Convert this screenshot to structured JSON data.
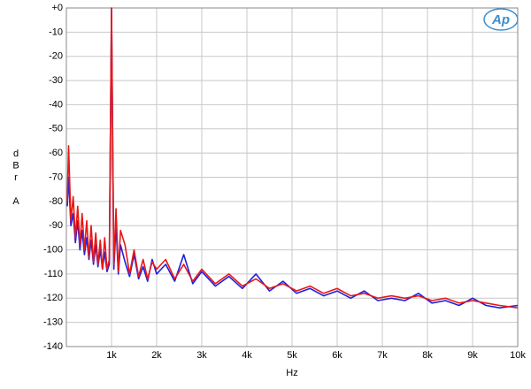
{
  "chart_data": {
    "type": "line",
    "logo": "Ap",
    "xlabel": "Hz",
    "ylabel": "dBr A",
    "x": [
      20,
      50,
      100,
      150,
      200,
      250,
      300,
      350,
      400,
      450,
      500,
      550,
      600,
      650,
      700,
      750,
      800,
      850,
      900,
      950,
      1000,
      1050,
      1100,
      1150,
      1200,
      1300,
      1400,
      1500,
      1600,
      1700,
      1800,
      1900,
      2000,
      2200,
      2400,
      2600,
      2800,
      3000,
      3300,
      3600,
      3900,
      4200,
      4500,
      4800,
      5100,
      5400,
      5700,
      6000,
      6300,
      6600,
      6900,
      7200,
      7500,
      7800,
      8100,
      8400,
      8700,
      9000,
      9300,
      9600,
      10000
    ],
    "series": [
      {
        "color": "#1f1fe0",
        "values": [
          -82,
          -70,
          -90,
          -85,
          -97,
          -88,
          -100,
          -92,
          -102,
          -95,
          -104,
          -96,
          -106,
          -98,
          -107,
          -100,
          -108,
          -101,
          -109,
          -106,
          0,
          -108,
          -90,
          -110,
          -98,
          -105,
          -111,
          -102,
          -112,
          -107,
          -113,
          -104,
          -110,
          -106,
          -113,
          -102,
          -114,
          -109,
          -115,
          -111,
          -116,
          -110,
          -117,
          -113,
          -118,
          -116,
          -119,
          -117,
          -120,
          -117,
          -121,
          -120,
          -121,
          -118,
          -122,
          -121,
          -123,
          -120,
          -123,
          -124,
          -123
        ]
      },
      {
        "color": "#e81818",
        "values": [
          -80,
          -57,
          -88,
          -78,
          -95,
          -82,
          -98,
          -85,
          -100,
          -88,
          -103,
          -90,
          -105,
          -93,
          -106,
          -96,
          -108,
          -95,
          -108,
          -104,
          0,
          -106,
          -83,
          -109,
          -92,
          -98,
          -110,
          -100,
          -111,
          -104,
          -112,
          -105,
          -108,
          -104,
          -112,
          -106,
          -113,
          -108,
          -114,
          -110,
          -115,
          -112,
          -116,
          -114,
          -117,
          -115,
          -118,
          -116,
          -119,
          -118,
          -120,
          -119,
          -120,
          -119,
          -121,
          -120,
          -122,
          -121,
          -122,
          -123,
          -124
        ]
      }
    ],
    "xlim": [
      0,
      10000
    ],
    "xticks": [
      {
        "value": 1000,
        "label": "1k"
      },
      {
        "value": 2000,
        "label": "2k"
      },
      {
        "value": 3000,
        "label": "3k"
      },
      {
        "value": 4000,
        "label": "4k"
      },
      {
        "value": 5000,
        "label": "5k"
      },
      {
        "value": 6000,
        "label": "6k"
      },
      {
        "value": 7000,
        "label": "7k"
      },
      {
        "value": 8000,
        "label": "8k"
      },
      {
        "value": 9000,
        "label": "9k"
      },
      {
        "value": 10000,
        "label": "10k"
      }
    ],
    "ylim": [
      -140,
      0
    ],
    "yticks": [
      {
        "value": 0,
        "label": "+0"
      },
      -10,
      -20,
      -30,
      -40,
      -50,
      -60,
      -70,
      -80,
      -90,
      -100,
      -110,
      -120,
      -130,
      -140
    ],
    "grid": true
  }
}
